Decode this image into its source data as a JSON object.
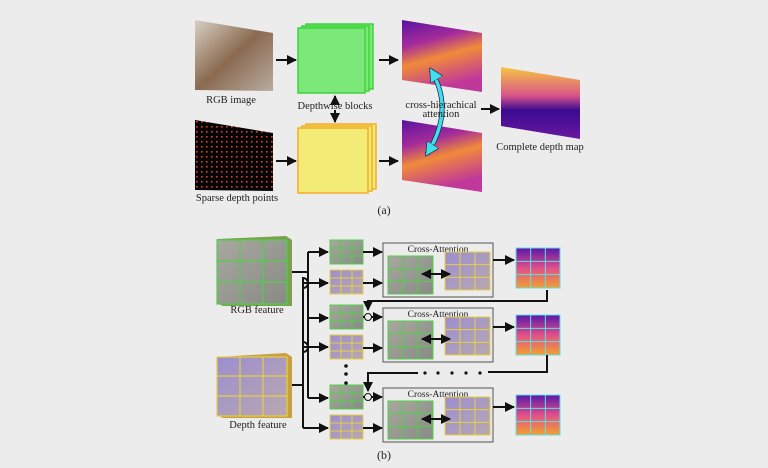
{
  "part_a": {
    "rgb_label": "RGB image",
    "sparse_label": "Sparse depth points",
    "blocks_label": "Depthwise blocks",
    "attention_label_1": "cross-hierachical",
    "attention_label_2": "attention",
    "output_label": "Complete depth map",
    "caption": "(a)"
  },
  "part_b": {
    "rgb_feature_label": "RGB feature",
    "depth_feature_label": "Depth feature",
    "cross_attention_labels": [
      "Cross-Attention",
      "Cross-Attention",
      "Cross-Attention"
    ],
    "caption": "(b)"
  },
  "colors": {
    "background": "#ececec",
    "green_block": "#7de87a",
    "yellow_block": "#f2ec76",
    "cyan_arrow": "#3fe0ea"
  }
}
